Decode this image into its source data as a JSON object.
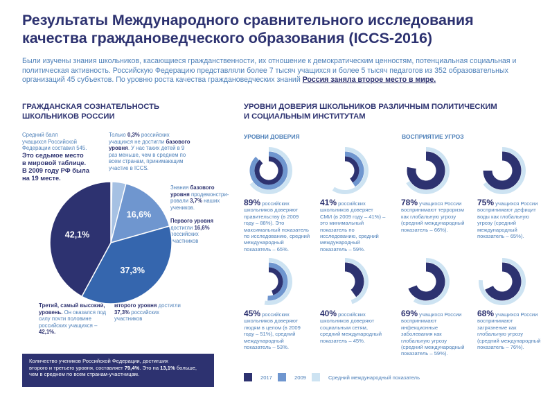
{
  "title": "Результаты Международного сравнительного исследования качества граждановедческого образования (ICCS-2016)",
  "intro": {
    "text": "Были изучены знания школьников, касающиеся гражданственности, их отношение к демократическим ценностям, потенциальная социальная и политическая активность. Российскую Федерацию представляли более 7 тысяч учащихся и более 5 тысяч педагогов из 352 образовательных организаций 45 субъектов. По уровню роста качества граждановедческих знаний ",
    "highlight": "Россия заняла второе место в мире."
  },
  "left": {
    "heading_1": "ГРАЖДАНСКАЯ СОЗНАТЕЛЬНОСТЬ",
    "heading_2": "ШКОЛЬНИКОВ РОССИИ",
    "avg_1": "Средний балл",
    "avg_2": "учащихся Российской",
    "avg_3": "Федерации составил 545.",
    "avg_4": "Это седьмое место",
    "avg_5": "в мировой таблице.",
    "avg_6": "В 2009 году РФ была",
    "avg_7": "на 19 месте.",
    "note_1a": "Только ",
    "note_1b": "0,3%",
    "note_1c": " российских",
    "note_2": "учащихся не достигли",
    "note_2b": "базового",
    "note_3a": "уровня",
    "note_3b": ". У нас таких детей в 9",
    "note_4": "раз меньше, чем в среднем по",
    "note_5": "всем странам, принимающим",
    "note_6": "участие в ICCS.",
    "base_1": "Знания",
    "base_1b": "базового",
    "base_2a": "уровня",
    "base_2b": " продемонстри-",
    "base_3a": "ровали ",
    "base_3b": "3,7%",
    "base_3c": " наших",
    "base_4": "учеников.",
    "first_1": "Первого уровня",
    "first_2a": "достигли ",
    "first_2b": "16,6%",
    "first_3": "российских",
    "first_4": "участников",
    "second_1a": "Второго уровня",
    "second_1b": " достигли",
    "second_2a": "37,3%",
    "second_2b": " российских",
    "second_3": "участников",
    "third_1": "Третий, самый высокий,",
    "third_2a": "уровень.",
    "third_2b": " Он оказался под",
    "third_3": "силу почти половине",
    "third_4": "российских учащихся –",
    "third_5": "42,1%.",
    "footer_1": "Количество учеников Российской Федерации, достигших",
    "footer_2a": "второго и третьего уровня, составляет ",
    "footer_2b": "79,4%",
    "footer_2c": ". Это на ",
    "footer_2d": "13,1%",
    "footer_2e": " больше,",
    "footer_3": "чем в среднем по всем странам-участницам."
  },
  "chart_data": [
    {
      "type": "pie",
      "categories": [
        "Третий уровень",
        "Второй уровень",
        "Первый уровень",
        "Базовый уровень",
        "Ниже базового"
      ],
      "values": [
        42.1,
        37.3,
        16.6,
        3.7,
        0.3
      ],
      "labels": [
        "42,1%",
        "37,3%",
        "16,6%",
        "",
        ""
      ],
      "colors": [
        "#2d3270",
        "#3566ae",
        "#6f96cf",
        "#a6c1e3",
        "#cfe0f2"
      ]
    }
  ],
  "right": {
    "heading_1": "УРОВНИ ДОВЕРИЯ ШКОЛЬНИКОВ РАЗЛИЧНЫМ ПОЛИТИЧЕСКИМ",
    "heading_2": "И СОЦИАЛЬНЫМ ИНСТИТУТАМ",
    "trust_head": "УРОВНИ ДОВЕРИЯ",
    "threat_head": "ВОСПРИЯТИЕ УГРОЗ",
    "donuts": [
      {
        "pct": "89%",
        "lines": [
          "российских",
          "школьников доверяют",
          "правительству (в 2009",
          "году – 88%). Это",
          "максимальный показатель",
          "по исследованию, средний",
          "международный",
          "показатель – 65%."
        ],
        "v2017": 89,
        "v2009": 88,
        "intl": 65
      },
      {
        "pct": "41%",
        "lines": [
          "российских",
          "школьников доверяет",
          "СМИ (в 2009 году – 41%) –",
          "это минимальный",
          "показатель по",
          "исследованию, средний",
          "международный",
          "показатель – 59%."
        ],
        "v2017": 41,
        "v2009": 41,
        "intl": 59
      },
      {
        "pct": "78%",
        "lines": [
          "учащихся России",
          "воспринимают терроризм",
          "как глобальную угрозу",
          "(средний международный",
          "показатель – 66%)."
        ],
        "v2017": 78,
        "v2009": null,
        "intl": 66
      },
      {
        "pct": "75%",
        "lines": [
          "учащихся России",
          "воспринимают дефицит",
          "воды как глобальную",
          "угрозу (средний",
          "международный",
          "показатель – 65%)."
        ],
        "v2017": 75,
        "v2009": null,
        "intl": 65
      },
      {
        "pct": "45%",
        "lines": [
          "российских",
          "школьников доверяют",
          "людям в целом (в 2009",
          "году – 51%), средний",
          "международный",
          "показатель – 53%."
        ],
        "v2017": 45,
        "v2009": 51,
        "intl": 53
      },
      {
        "pct": "40%",
        "lines": [
          "российских",
          "школьников доверяют",
          "социальным сетям,",
          "средний международный",
          "показатель – 45%."
        ],
        "v2017": 40,
        "v2009": null,
        "intl": 45
      },
      {
        "pct": "69%",
        "lines": [
          "учащихся России",
          "воспринимают",
          "инфекционные",
          "заболевания как",
          "глобальную угрозу",
          "(средний международный",
          "показатель – 59%)."
        ],
        "v2017": 69,
        "v2009": null,
        "intl": 59
      },
      {
        "pct": "68%",
        "lines": [
          "учащихся России",
          "воспринимают",
          "загрязнение как",
          "глобальную угрозу",
          "(средний международный",
          "показатель – 76%)."
        ],
        "v2017": 68,
        "v2009": null,
        "intl": 76
      }
    ],
    "legend": [
      {
        "label": "2017",
        "color": "#2d3270"
      },
      {
        "label": "2009",
        "color": "#6f96cf"
      },
      {
        "label": "Средний международный показатель",
        "color": "#cde3f2"
      }
    ]
  }
}
